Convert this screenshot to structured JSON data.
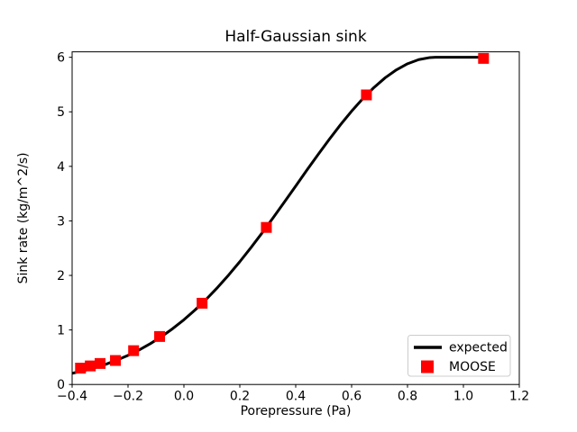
{
  "figure": {
    "title": "Half-Gaussian sink",
    "xlabel": "Porepressure (Pa)",
    "ylabel": "Sink rate (kg/m^2/s)"
  },
  "legend": {
    "position": "lower right",
    "items": [
      {
        "label": "expected",
        "swatch": "line",
        "color": "#000000"
      },
      {
        "label": "MOOSE",
        "swatch": "square",
        "color": "#ff0000"
      }
    ]
  },
  "chart_data": {
    "type": "line",
    "title": "Half-Gaussian sink",
    "xlabel": "Porepressure (Pa)",
    "ylabel": "Sink rate (kg/m^2/s)",
    "xlim": [
      -0.4,
      1.2
    ],
    "ylim": [
      0,
      6.1
    ],
    "grid": false,
    "legend_position": "lower right",
    "xticks": {
      "values": [
        -0.4,
        -0.2,
        0.0,
        0.2,
        0.4,
        0.6,
        0.8,
        1.0,
        1.2
      ],
      "labels": [
        "−0.4",
        "−0.2",
        "0.0",
        "0.2",
        "0.4",
        "0.6",
        "0.8",
        "1.0",
        "1.2"
      ]
    },
    "yticks": {
      "values": [
        0,
        1,
        2,
        3,
        4,
        5,
        6
      ],
      "labels": [
        "0",
        "1",
        "2",
        "3",
        "4",
        "5",
        "6"
      ]
    },
    "series": [
      {
        "name": "expected",
        "type": "line",
        "color": "#000000",
        "linewidth": 3,
        "points": [
          [
            -0.4,
            0.204
          ],
          [
            -0.36,
            0.251
          ],
          [
            -0.32,
            0.306
          ],
          [
            -0.28,
            0.37
          ],
          [
            -0.24,
            0.446
          ],
          [
            -0.2,
            0.534
          ],
          [
            -0.16,
            0.634
          ],
          [
            -0.12,
            0.749
          ],
          [
            -0.08,
            0.878
          ],
          [
            -0.04,
            1.025
          ],
          [
            0.0,
            1.187
          ],
          [
            0.04,
            1.367
          ],
          [
            0.08,
            1.563
          ],
          [
            0.12,
            1.777
          ],
          [
            0.16,
            2.007
          ],
          [
            0.2,
            2.252
          ],
          [
            0.24,
            2.511
          ],
          [
            0.28,
            2.781
          ],
          [
            0.32,
            3.062
          ],
          [
            0.36,
            3.349
          ],
          [
            0.4,
            3.639
          ],
          [
            0.44,
            3.931
          ],
          [
            0.48,
            4.216
          ],
          [
            0.52,
            4.495
          ],
          [
            0.56,
            4.762
          ],
          [
            0.6,
            5.012
          ],
          [
            0.64,
            5.241
          ],
          [
            0.68,
            5.446
          ],
          [
            0.72,
            5.624
          ],
          [
            0.76,
            5.769
          ],
          [
            0.8,
            5.881
          ],
          [
            0.84,
            5.957
          ],
          [
            0.88,
            5.995
          ],
          [
            0.9,
            6.0
          ],
          [
            0.95,
            6.0
          ],
          [
            1.0,
            6.0
          ],
          [
            1.072,
            6.0
          ]
        ]
      },
      {
        "name": "MOOSE",
        "type": "scatter",
        "marker": "square",
        "color": "#ff0000",
        "markersize": 12,
        "points": [
          [
            -0.37,
            0.3
          ],
          [
            -0.335,
            0.34
          ],
          [
            -0.3,
            0.385
          ],
          [
            -0.245,
            0.44
          ],
          [
            -0.18,
            0.62
          ],
          [
            -0.087,
            0.88
          ],
          [
            0.065,
            1.49
          ],
          [
            0.295,
            2.88
          ],
          [
            0.653,
            5.31
          ],
          [
            1.072,
            5.98
          ]
        ]
      }
    ]
  }
}
